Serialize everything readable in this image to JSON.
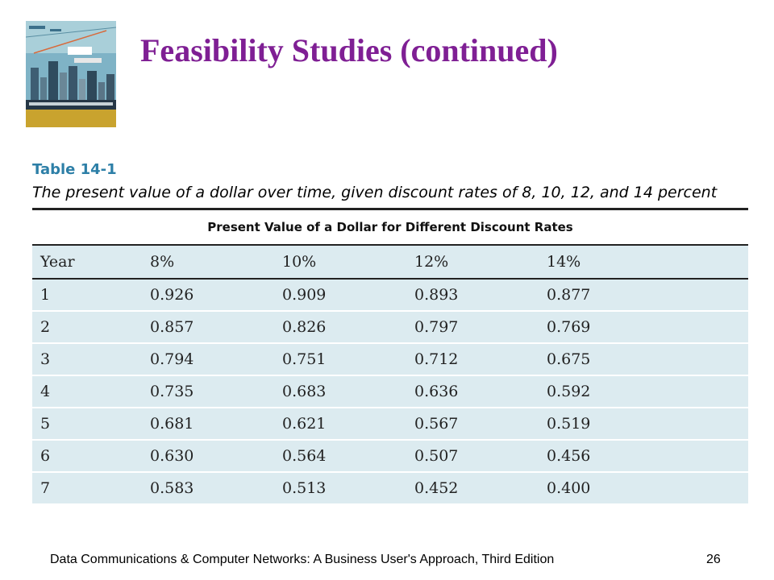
{
  "slide": {
    "title": "Feasibility Studies (continued)",
    "cover_icon": "book-cover-city-skyline-icon"
  },
  "table": {
    "label": "Table 14-1",
    "caption": "The present value of a dollar over time, given discount rates of 8, 10, 12, and 14 percent",
    "super_header": "Present Value of a Dollar for Different Discount Rates",
    "columns": [
      "Year",
      "8%",
      "10%",
      "12%",
      "14%"
    ],
    "rows": [
      [
        "1",
        "0.926",
        "0.909",
        "0.893",
        "0.877"
      ],
      [
        "2",
        "0.857",
        "0.826",
        "0.797",
        "0.769"
      ],
      [
        "3",
        "0.794",
        "0.751",
        "0.712",
        "0.675"
      ],
      [
        "4",
        "0.735",
        "0.683",
        "0.636",
        "0.592"
      ],
      [
        "5",
        "0.681",
        "0.621",
        "0.567",
        "0.519"
      ],
      [
        "6",
        "0.630",
        "0.564",
        "0.507",
        "0.456"
      ],
      [
        "7",
        "0.583",
        "0.513",
        "0.452",
        "0.400"
      ]
    ]
  },
  "footer": {
    "text": "Data Communications & Computer Networks: A Business User's Approach, Third Edition",
    "page_number": "26"
  },
  "colors": {
    "title": "#7f1f94",
    "table_label": "#2d7fa7",
    "table_fill": "#dcebf0"
  }
}
